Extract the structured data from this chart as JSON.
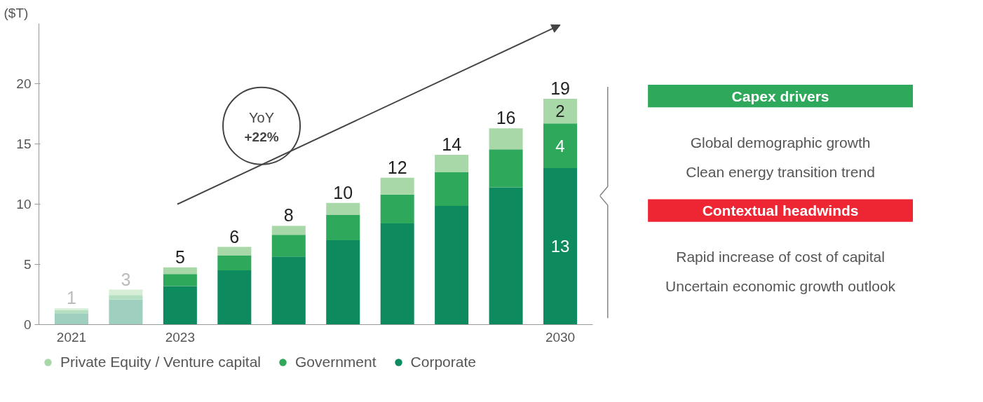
{
  "chart_data": [
    {
      "type": "bar",
      "stacked": true,
      "ylabel": "($T)",
      "categories": [
        "2021",
        null,
        "2023",
        null,
        null,
        null,
        null,
        null,
        null,
        "2030"
      ],
      "series": [
        {
          "name": "Corporate",
          "color": "#0e8a5f",
          "colors": [
            "#9fd0bf",
            "#9fd0bf",
            "#0e8a5f",
            "#0e8a5f",
            "#0e8a5f",
            "#0e8a5f",
            "#0e8a5f",
            "#0e8a5f",
            "#0e8a5f",
            "#0e8a5f"
          ],
          "values": [
            0.95,
            2.1,
            3.2,
            4.5,
            5.65,
            7.0,
            8.4,
            9.85,
            11.4,
            13.0
          ],
          "value_labels": [
            null,
            null,
            null,
            null,
            null,
            null,
            null,
            null,
            null,
            "13"
          ]
        },
        {
          "name": "Government",
          "color": "#2ea85a",
          "colors": [
            "#b5dfc1",
            "#b5dfc1",
            "#2ea85a",
            "#2ea85a",
            "#2ea85a",
            "#2ea85a",
            "#2ea85a",
            "#2ea85a",
            "#2ea85a",
            "#2ea85a"
          ],
          "values": [
            0.25,
            0.35,
            1.0,
            1.25,
            1.8,
            2.1,
            2.4,
            2.8,
            3.15,
            3.7
          ],
          "value_labels": [
            null,
            null,
            null,
            null,
            null,
            null,
            null,
            null,
            null,
            "4"
          ]
        },
        {
          "name": "Private Equity / Venture capital",
          "color": "#a9d8a8",
          "colors": [
            "#d6eed6",
            "#d6eed6",
            "#a9d8a8",
            "#a9d8a8",
            "#a9d8a8",
            "#a9d8a8",
            "#a9d8a8",
            "#a9d8a8",
            "#a9d8a8",
            "#a9d8a8"
          ],
          "values": [
            0.15,
            0.45,
            0.55,
            0.7,
            0.75,
            1.0,
            1.4,
            1.45,
            1.75,
            2.05
          ],
          "value_labels": [
            null,
            null,
            null,
            null,
            null,
            null,
            null,
            null,
            null,
            "2"
          ]
        }
      ],
      "totals": [
        "1",
        "3",
        "5",
        "6",
        "8",
        "10",
        "12",
        "14",
        "16",
        "19"
      ],
      "ylim": [
        0,
        25
      ],
      "yticks": [
        0,
        5,
        10,
        15,
        20
      ],
      "grid": false,
      "legend": "bottom",
      "marker": "circle",
      "annotations": [
        "YoY +22%"
      ]
    },
    {
      "type": "other",
      "annotations": [
        "Capex drivers",
        "Global demographic growth",
        "Clean energy transition trend",
        "Contextual headwinds",
        "Rapid increase of cost of capital",
        "Uncertain economic growth outlook"
      ],
      "colors": [
        "#2ea85a",
        null,
        null,
        "#ee2633",
        null,
        null
      ]
    }
  ]
}
